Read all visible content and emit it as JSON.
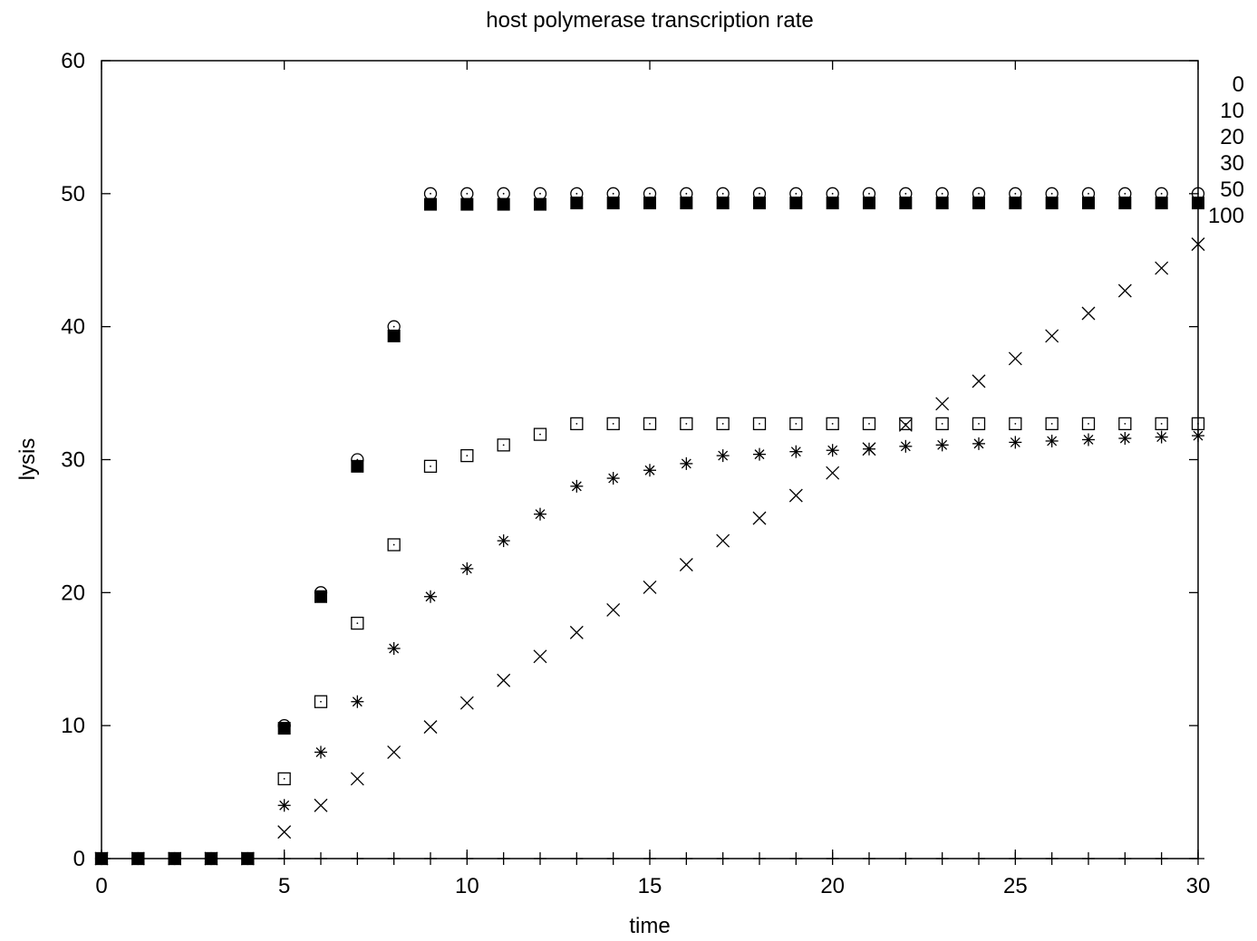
{
  "chart_data": {
    "type": "scatter",
    "title": "host polymerase transcription rate",
    "xlabel": "time",
    "ylabel": "lysis",
    "xlim": [
      0,
      30
    ],
    "ylim": [
      0,
      60
    ],
    "xticks": [
      "0",
      "5",
      "10",
      "15",
      "20",
      "25",
      "30"
    ],
    "yticks": [
      "0",
      "10",
      "20",
      "30",
      "40",
      "50",
      "60"
    ],
    "grid": false,
    "legend_position": "right",
    "series": [
      {
        "name": "0",
        "marker": "plus",
        "x": [
          0,
          1,
          2,
          3,
          4,
          5,
          6,
          7,
          8,
          9,
          10,
          11,
          12,
          13,
          14,
          15,
          16,
          17,
          18,
          19,
          20,
          21,
          22,
          23,
          24,
          25,
          26,
          27,
          28,
          29,
          30
        ],
        "y": [
          0,
          0,
          0,
          0,
          0,
          0,
          0,
          0,
          0,
          0,
          0,
          0,
          0,
          0,
          0,
          0,
          0,
          0,
          0,
          0,
          0,
          0,
          0,
          0,
          0,
          0,
          0,
          0,
          0,
          0,
          0
        ]
      },
      {
        "name": "10",
        "marker": "cross",
        "x": [
          0,
          1,
          2,
          3,
          4,
          5,
          6,
          7,
          8,
          9,
          10,
          11,
          12,
          13,
          14,
          15,
          16,
          17,
          18,
          19,
          20,
          21,
          22,
          23,
          24,
          25,
          26,
          27,
          28,
          29,
          30
        ],
        "y": [
          0,
          0,
          0,
          0,
          0,
          2,
          4,
          6,
          8,
          9.9,
          11.7,
          13.4,
          15.2,
          17,
          18.7,
          20.4,
          22.1,
          23.9,
          25.6,
          27.3,
          29,
          30.8,
          32.6,
          34.2,
          35.9,
          37.6,
          39.3,
          41,
          42.7,
          44.4,
          46.2
        ]
      },
      {
        "name": "20",
        "marker": "star",
        "x": [
          0,
          1,
          2,
          3,
          4,
          5,
          6,
          7,
          8,
          9,
          10,
          11,
          12,
          13,
          14,
          15,
          16,
          17,
          18,
          19,
          20,
          21,
          22,
          23,
          24,
          25,
          26,
          27,
          28,
          29,
          30
        ],
        "y": [
          0,
          0,
          0,
          0,
          0,
          4,
          8,
          11.8,
          15.8,
          19.7,
          21.8,
          23.9,
          25.9,
          28,
          28.6,
          29.2,
          29.7,
          30.3,
          30.4,
          30.6,
          30.7,
          30.8,
          31,
          31.1,
          31.2,
          31.3,
          31.4,
          31.5,
          31.6,
          31.7,
          31.8
        ]
      },
      {
        "name": "30",
        "marker": "square-dot",
        "x": [
          0,
          1,
          2,
          3,
          4,
          5,
          6,
          7,
          8,
          9,
          10,
          11,
          12,
          13,
          14,
          15,
          16,
          17,
          18,
          19,
          20,
          21,
          22,
          23,
          24,
          25,
          26,
          27,
          28,
          29,
          30
        ],
        "y": [
          0,
          0,
          0,
          0,
          0,
          6,
          11.8,
          17.7,
          23.6,
          29.5,
          30.3,
          31.1,
          31.9,
          32.7,
          32.7,
          32.7,
          32.7,
          32.7,
          32.7,
          32.7,
          32.7,
          32.7,
          32.7,
          32.7,
          32.7,
          32.7,
          32.7,
          32.7,
          32.7,
          32.7,
          32.7
        ]
      },
      {
        "name": "50",
        "marker": "circle-dot",
        "x": [
          0,
          1,
          2,
          3,
          4,
          5,
          6,
          7,
          8,
          9,
          10,
          11,
          12,
          13,
          14,
          15,
          16,
          17,
          18,
          19,
          20,
          21,
          22,
          23,
          24,
          25,
          26,
          27,
          28,
          29,
          30
        ],
        "y": [
          0,
          0,
          0,
          0,
          0,
          10,
          20,
          30,
          40,
          50,
          50,
          50,
          50,
          50,
          50,
          50,
          50,
          50,
          50,
          50,
          50,
          50,
          50,
          50,
          50,
          50,
          50,
          50,
          50,
          50,
          50
        ]
      },
      {
        "name": "100",
        "marker": "filled-square",
        "x": [
          0,
          1,
          2,
          3,
          4,
          5,
          6,
          7,
          8,
          9,
          10,
          11,
          12,
          13,
          14,
          15,
          16,
          17,
          18,
          19,
          20,
          21,
          22,
          23,
          24,
          25,
          26,
          27,
          28,
          29,
          30
        ],
        "y": [
          0,
          0,
          0,
          0,
          0,
          9.8,
          19.7,
          29.5,
          39.3,
          49.2,
          49.2,
          49.2,
          49.2,
          49.3,
          49.3,
          49.3,
          49.3,
          49.3,
          49.3,
          49.3,
          49.3,
          49.3,
          49.3,
          49.3,
          49.3,
          49.3,
          49.3,
          49.3,
          49.3,
          49.3,
          49.3
        ]
      }
    ]
  }
}
